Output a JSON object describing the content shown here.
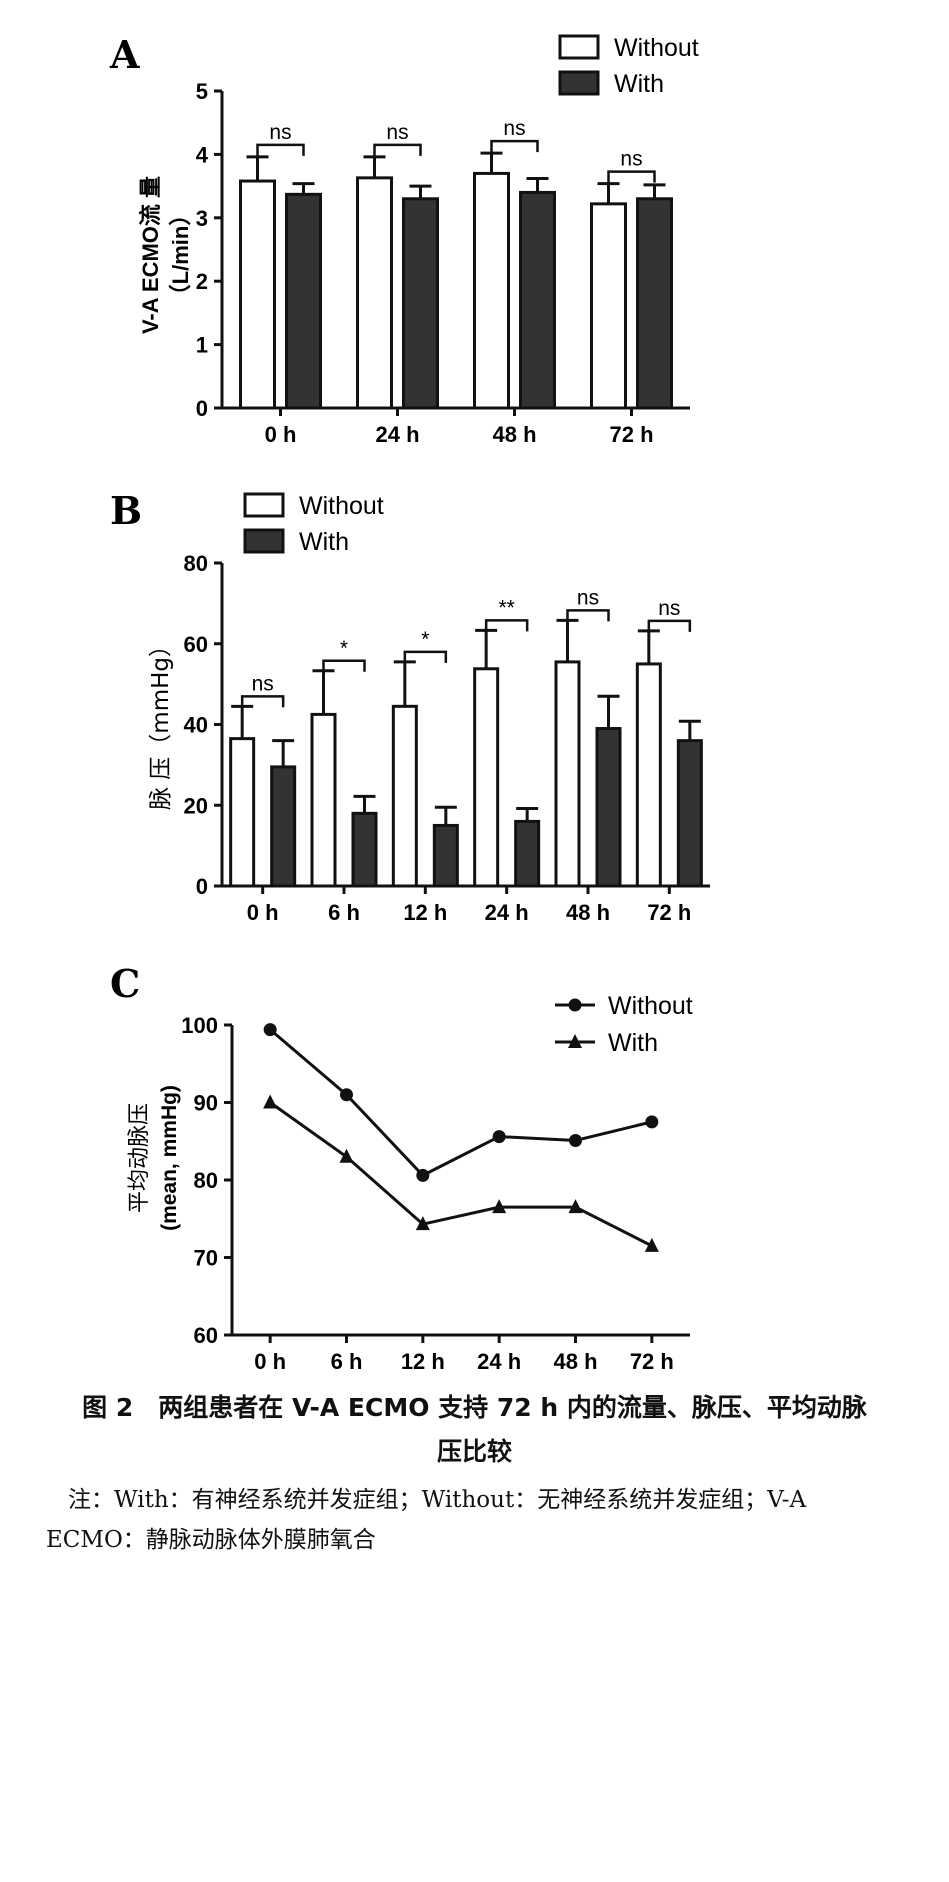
{
  "chart_data": [
    {
      "panel": "A",
      "type": "bar",
      "ylabel_line1": "V-A ECMO流 量",
      "ylabel_line2": "（L/min）",
      "ylim": [
        0,
        5
      ],
      "yticks": [
        0,
        1,
        2,
        3,
        4,
        5
      ],
      "categories": [
        "0 h",
        "24 h",
        "48 h",
        "72 h"
      ],
      "series": [
        {
          "name": "Without",
          "color": "#ffffff",
          "values": [
            3.58,
            3.63,
            3.7,
            3.22
          ],
          "errors": [
            0.38,
            0.33,
            0.32,
            0.32
          ]
        },
        {
          "name": "With",
          "color": "#333333",
          "values": [
            3.37,
            3.3,
            3.4,
            3.3
          ],
          "errors": [
            0.17,
            0.2,
            0.22,
            0.22
          ]
        }
      ],
      "significance": [
        "ns",
        "ns",
        "ns",
        "ns"
      ],
      "legend_position": "top-right"
    },
    {
      "panel": "B",
      "type": "bar",
      "ylabel_line1": "脉 压（mmHg）",
      "ylim": [
        0,
        80
      ],
      "yticks": [
        0,
        20,
        40,
        60,
        80
      ],
      "categories": [
        "0 h",
        "6 h",
        "12 h",
        "24 h",
        "48 h",
        "72 h"
      ],
      "series": [
        {
          "name": "Without",
          "color": "#ffffff",
          "values": [
            36.5,
            42.5,
            44.5,
            53.8,
            55.5,
            55.0
          ],
          "errors": [
            8.0,
            10.8,
            11.0,
            9.5,
            10.3,
            8.2
          ]
        },
        {
          "name": "With",
          "color": "#333333",
          "values": [
            29.5,
            18.0,
            15.0,
            16.0,
            39.0,
            36.0
          ],
          "errors": [
            6.5,
            4.2,
            4.5,
            3.2,
            8.0,
            4.8
          ]
        }
      ],
      "significance": [
        "ns",
        "*",
        "*",
        "**",
        "ns",
        "ns"
      ],
      "legend_position": "top-left"
    },
    {
      "panel": "C",
      "type": "line",
      "ylabel_line1": "平均动脉压",
      "ylabel_line2": "(mean, mmHg)",
      "ylim": [
        60,
        100
      ],
      "yticks": [
        60,
        70,
        80,
        90,
        100
      ],
      "categories": [
        "0 h",
        "6 h",
        "12 h",
        "24 h",
        "48 h",
        "72 h"
      ],
      "series": [
        {
          "name": "Without",
          "marker": "circle",
          "values": [
            99.4,
            91.0,
            80.6,
            85.6,
            85.1,
            87.5
          ]
        },
        {
          "name": "With",
          "marker": "triangle",
          "values": [
            90.0,
            83.0,
            74.3,
            76.5,
            76.5,
            71.5
          ]
        }
      ],
      "legend_position": "top-right"
    }
  ],
  "caption": {
    "line1": "图 2　两组患者在 V-A ECMO 支持 72 h 内的流量、脉压、平均动脉",
    "line2": "压比较"
  },
  "note": {
    "line1": "注：With：有神经系统并发症组；Without：无神经系统并发症组；V-A",
    "line2": "ECMO：静脉动脉体外膜肺氧合"
  }
}
